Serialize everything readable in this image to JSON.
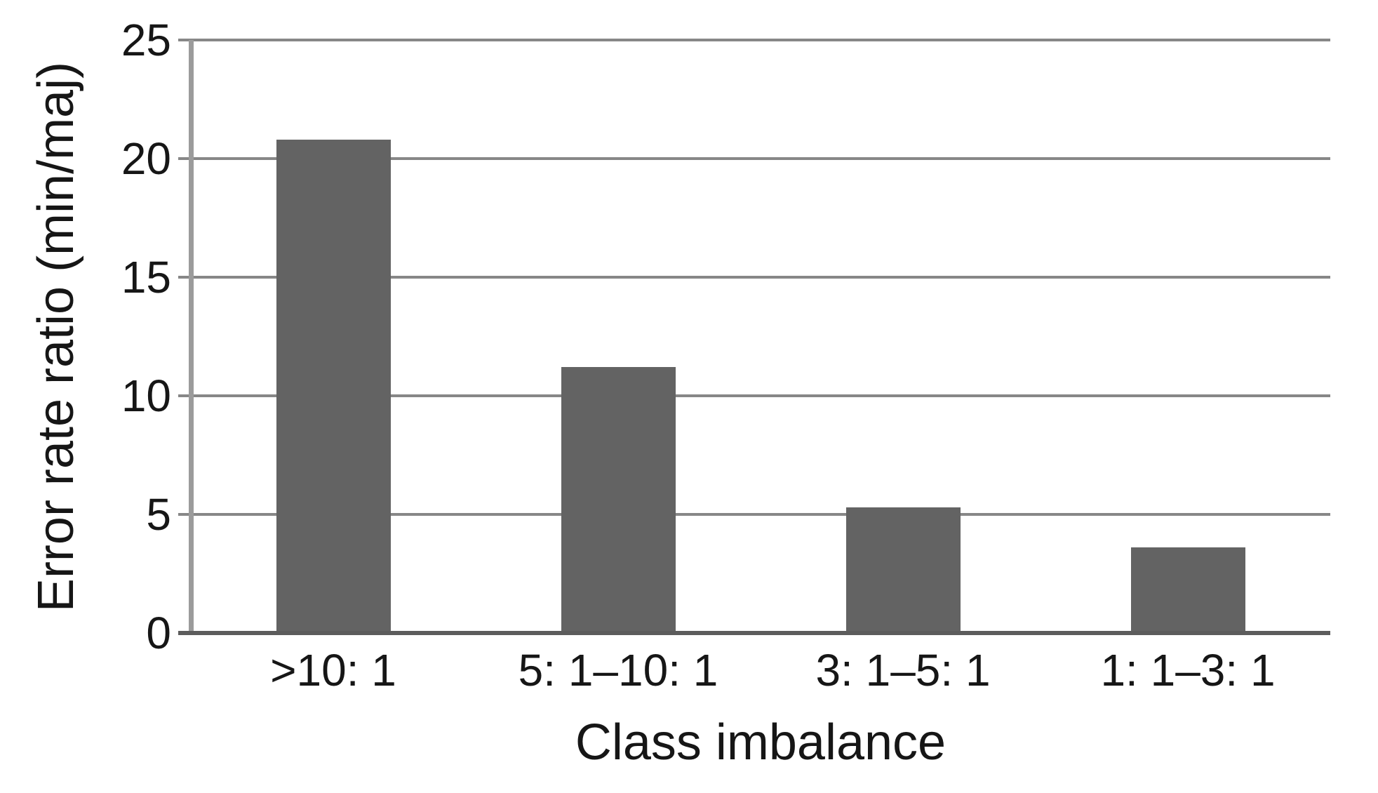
{
  "chart_data": {
    "type": "bar",
    "categories": [
      ">10: 1",
      "5: 1–10: 1",
      "3: 1–5: 1",
      "1: 1–3: 1"
    ],
    "values": [
      20.8,
      11.2,
      5.3,
      3.6
    ],
    "title": "",
    "xlabel": "Class imbalance",
    "ylabel": "Error rate ratio (min/maj)",
    "ylim": [
      0,
      25
    ],
    "yticks": [
      0,
      5,
      10,
      15,
      20,
      25
    ],
    "grid": "horizontal",
    "legend": "none",
    "colors": {
      "bar": "#636363",
      "gridline": "#878787",
      "baseline": "#5c5c5c",
      "axis_line": "#9b9b9b",
      "text": "#161616",
      "background": "#ffffff"
    }
  }
}
